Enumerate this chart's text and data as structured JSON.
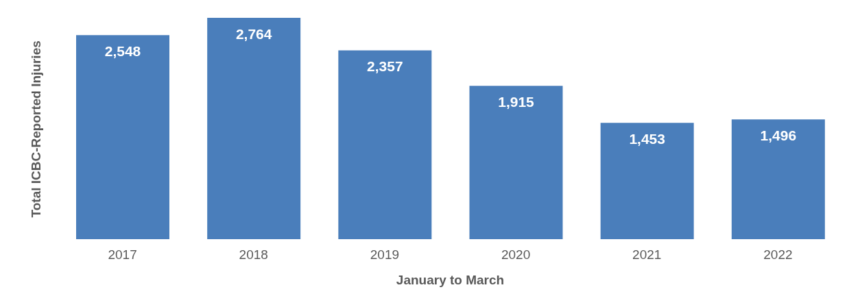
{
  "chart_data": {
    "type": "bar",
    "xlabel": "January to March",
    "ylabel": "Total ICBC-Reported Injuries",
    "categories": [
      "2017",
      "2018",
      "2019",
      "2020",
      "2021",
      "2022"
    ],
    "values": [
      2548,
      2764,
      2357,
      1915,
      1453,
      1496
    ],
    "value_labels": [
      "2,548",
      "2,764",
      "2,357",
      "1,915",
      "1,453",
      "1,496"
    ],
    "color": "#4a7ebb",
    "grid": false,
    "legend": false
  }
}
